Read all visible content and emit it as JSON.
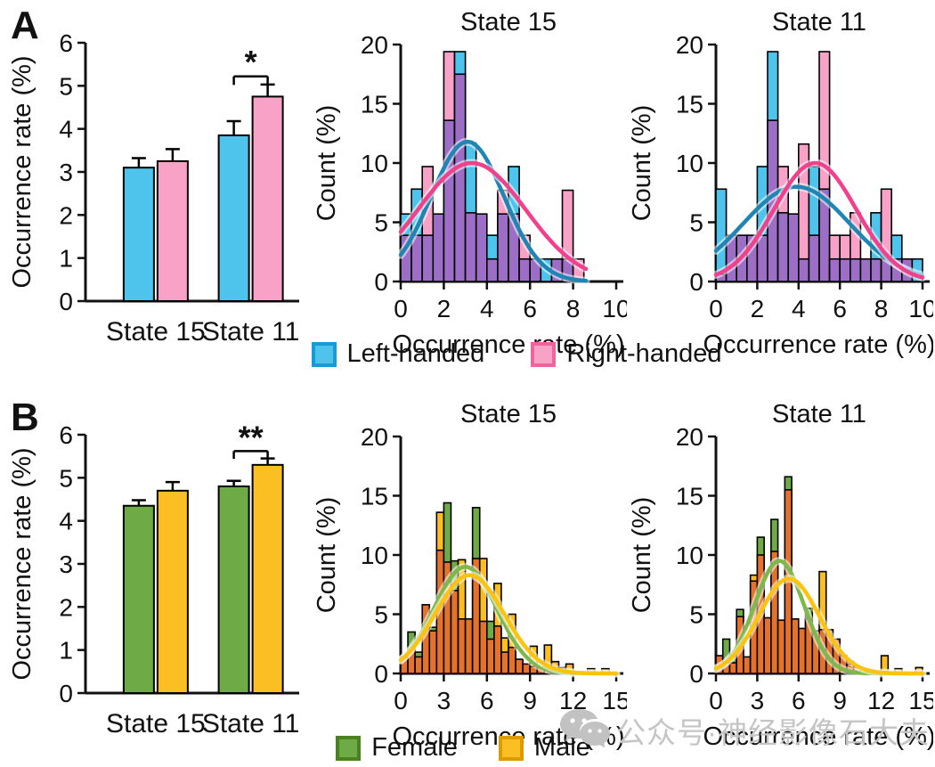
{
  "figure": {
    "panel_a_label": "A",
    "panel_b_label": "B",
    "watermark": {
      "text": "公众号·神经影像石大夫",
      "icon": "wechat-icon",
      "color": "#c5c5c5"
    }
  },
  "legends": {
    "a": {
      "items": [
        {
          "label": "Left-handed",
          "color": "#4EC4EC",
          "border": "#189BD7"
        },
        {
          "label": "Right-handed",
          "color": "#F9A2C8",
          "border": "#F0639F"
        }
      ]
    },
    "b": {
      "items": [
        {
          "label": "Female",
          "color": "#6EAB47",
          "border": "#49821F"
        },
        {
          "label": "Male",
          "color": "#FBBE23",
          "border": "#DA9C00"
        }
      ]
    }
  },
  "chart_data": [
    {
      "id": "a-bar",
      "panel": "A",
      "type": "bar",
      "ylabel": "Occurrence rate (%)",
      "ylim": [
        0,
        6
      ],
      "yticks": [
        0,
        1,
        2,
        3,
        4,
        5,
        6
      ],
      "categories": [
        "State 15",
        "State 11"
      ],
      "series": [
        {
          "name": "Left-handed",
          "color": "#4EC4EC",
          "values": [
            3.1,
            3.85
          ],
          "errors": [
            0.22,
            0.33
          ]
        },
        {
          "name": "Right-handed",
          "color": "#F9A2C8",
          "values": [
            3.25,
            4.75
          ],
          "errors": [
            0.28,
            0.28
          ]
        }
      ],
      "significance": {
        "category": "State 11",
        "label": "*",
        "bracket_y": 5.22,
        "tick_drop": 0.2,
        "label_y": 5.3
      }
    },
    {
      "id": "a-hist-15",
      "panel": "A",
      "type": "histogram",
      "title": "State 15",
      "xlabel": "Occurrence rate (%)",
      "ylabel": "Count (%)",
      "xlim": [
        0,
        10
      ],
      "ylim": [
        0,
        20
      ],
      "xticks": [
        0,
        2,
        4,
        6,
        8,
        10
      ],
      "yticks": [
        0,
        5,
        10,
        15,
        20
      ],
      "bin_width": 0.5,
      "overlap_color": "#9C6EC6",
      "series": [
        {
          "name": "Left-handed",
          "color": "#4EC4EC"
        },
        {
          "name": "Right-handed",
          "color": "#F9A2C8"
        }
      ],
      "bins": [
        [
          0,
          5.7,
          3.9
        ],
        [
          0.5,
          7.8,
          3.9
        ],
        [
          1,
          3.9,
          9.7
        ],
        [
          1.5,
          5.7,
          5.7
        ],
        [
          2,
          13.6,
          19.4
        ],
        [
          2.5,
          19.4,
          17.5
        ],
        [
          3,
          11.7,
          5.8
        ],
        [
          3.5,
          5.7,
          5.7
        ],
        [
          4,
          3.9,
          1.9
        ],
        [
          4.5,
          5.7,
          7.7
        ],
        [
          5,
          9.7,
          5.7
        ],
        [
          5.5,
          1.9,
          3.9
        ],
        [
          6,
          1.9,
          1.9
        ],
        [
          6.5,
          1.9,
          0
        ],
        [
          7,
          1.9,
          1.9
        ],
        [
          7.5,
          1.9,
          7.7
        ],
        [
          8,
          0,
          1.9
        ]
      ],
      "curves": [
        {
          "series": "Left-handed",
          "color": "#1F85B5",
          "peak": 11.8,
          "mean": 3.1,
          "sigma": 1.7,
          "xmax": 8.6
        },
        {
          "series": "Right-handed",
          "color": "#F2408C",
          "peak": 10.0,
          "mean": 3.3,
          "sigma": 2.5,
          "xmax": 8.6
        }
      ]
    },
    {
      "id": "a-hist-11",
      "panel": "A",
      "type": "histogram",
      "title": "State 11",
      "xlabel": "Occurrence rate (%)",
      "ylabel": "Count (%)",
      "xlim": [
        0,
        10
      ],
      "ylim": [
        0,
        20
      ],
      "xticks": [
        0,
        2,
        4,
        6,
        8,
        10
      ],
      "yticks": [
        0,
        5,
        10,
        15,
        20
      ],
      "bin_width": 0.5,
      "overlap_color": "#9C6EC6",
      "series": [
        {
          "name": "Left-handed",
          "color": "#4EC4EC"
        },
        {
          "name": "Right-handed",
          "color": "#F9A2C8"
        }
      ],
      "bins": [
        [
          0,
          7.8,
          0.6
        ],
        [
          0.5,
          3.9,
          3.9
        ],
        [
          1,
          3.9,
          3.9
        ],
        [
          1.5,
          3.9,
          3.9
        ],
        [
          2,
          9.7,
          3.9
        ],
        [
          2.5,
          19.4,
          13.6
        ],
        [
          3,
          5.8,
          9.7
        ],
        [
          3.5,
          5.7,
          5.7
        ],
        [
          4,
          1.9,
          11.6
        ],
        [
          4.5,
          9.7,
          3.9
        ],
        [
          5,
          7.8,
          19.4
        ],
        [
          5.5,
          1.9,
          3.9
        ],
        [
          6,
          1.9,
          3.9
        ],
        [
          6.5,
          1.9,
          5.8
        ],
        [
          7,
          1.9,
          1.9
        ],
        [
          7.5,
          5.8,
          1.9
        ],
        [
          8,
          1.9,
          7.8
        ],
        [
          8.5,
          3.9,
          1.9
        ],
        [
          9,
          1.9,
          1.9
        ],
        [
          9.5,
          1.9,
          0
        ]
      ],
      "curves": [
        {
          "series": "Left-handed",
          "color": "#1F85B5",
          "peak": 8.0,
          "mean": 3.9,
          "sigma": 2.6,
          "xmax": 10
        },
        {
          "series": "Right-handed",
          "color": "#F2408C",
          "peak": 10.0,
          "mean": 4.8,
          "sigma": 2.0,
          "xmax": 10
        }
      ]
    },
    {
      "id": "b-bar",
      "panel": "B",
      "type": "bar",
      "ylabel": "Occurrence rate (%)",
      "ylim": [
        0,
        6
      ],
      "yticks": [
        0,
        1,
        2,
        3,
        4,
        5,
        6
      ],
      "categories": [
        "State 15",
        "State 11"
      ],
      "series": [
        {
          "name": "Female",
          "color": "#6EAB47",
          "values": [
            4.35,
            4.8
          ],
          "errors": [
            0.13,
            0.13
          ]
        },
        {
          "name": "Male",
          "color": "#FBBE23",
          "values": [
            4.7,
            5.3
          ],
          "errors": [
            0.2,
            0.15
          ]
        }
      ],
      "significance": {
        "category": "State 11",
        "label": "**",
        "bracket_y": 5.62,
        "tick_drop": 0.18,
        "label_y": 5.68
      }
    },
    {
      "id": "b-hist-15",
      "panel": "B",
      "type": "histogram",
      "title": "State 15",
      "xlabel": "Occurrence rate (%)",
      "ylabel": "Count (%)",
      "xlim": [
        0,
        15
      ],
      "ylim": [
        0,
        20
      ],
      "xticks": [
        0,
        3,
        6,
        9,
        12,
        15
      ],
      "yticks": [
        0,
        5,
        10,
        15,
        20
      ],
      "bin_width": 0.5,
      "overlap_color": "#E4722C",
      "series": [
        {
          "name": "Female",
          "color": "#6EAB47"
        },
        {
          "name": "Male",
          "color": "#FBBE23"
        }
      ],
      "bins": [
        [
          0,
          1.3,
          1.3
        ],
        [
          0.5,
          3.5,
          2.0
        ],
        [
          1,
          1.8,
          1.4
        ],
        [
          1.5,
          5.8,
          5.8
        ],
        [
          2,
          3.9,
          3.6
        ],
        [
          2.5,
          10.4,
          13.6
        ],
        [
          3,
          14.4,
          9.4
        ],
        [
          3.5,
          9.5,
          7.0
        ],
        [
          4,
          4.6,
          9.6
        ],
        [
          4.5,
          4.6,
          4.6
        ],
        [
          5,
          14.0,
          9.7
        ],
        [
          5.5,
          4.4,
          9.7
        ],
        [
          6,
          4.4,
          2.9
        ],
        [
          6.5,
          4.0,
          7.6
        ],
        [
          7,
          1.8,
          3.0
        ],
        [
          7.5,
          2.2,
          5.0
        ],
        [
          8,
          1.2,
          1.2
        ],
        [
          8.5,
          0.8,
          0.8
        ],
        [
          9,
          0.6,
          2.3
        ],
        [
          9.5,
          0.5,
          0.5
        ],
        [
          10,
          0,
          2.4
        ],
        [
          10.5,
          0,
          1.0
        ],
        [
          11,
          0,
          0.5
        ],
        [
          11.5,
          0,
          0.8
        ],
        [
          13,
          0,
          0.4
        ],
        [
          14,
          0,
          0.4
        ]
      ],
      "curves": [
        {
          "series": "Female",
          "color": "#7FB84A",
          "peak": 9.0,
          "mean": 4.5,
          "sigma": 2.2,
          "xmax": 15
        },
        {
          "series": "Male",
          "color": "#FEC30F",
          "peak": 8.3,
          "mean": 4.8,
          "sigma": 2.4,
          "xmax": 15
        }
      ]
    },
    {
      "id": "b-hist-11",
      "panel": "B",
      "type": "histogram",
      "title": "State 11",
      "xlabel": "Occurrence rate (%)",
      "ylabel": "Count (%)",
      "xlim": [
        0,
        15
      ],
      "ylim": [
        0,
        20
      ],
      "xticks": [
        0,
        3,
        6,
        9,
        12,
        15
      ],
      "yticks": [
        0,
        5,
        10,
        15,
        20
      ],
      "bin_width": 0.5,
      "overlap_color": "#E4722C",
      "series": [
        {
          "name": "Female",
          "color": "#6EAB47"
        },
        {
          "name": "Male",
          "color": "#FBBE23"
        }
      ],
      "bins": [
        [
          0,
          1.5,
          1.5
        ],
        [
          0.5,
          2.9,
          1.0
        ],
        [
          1,
          1.4,
          0.9
        ],
        [
          1.5,
          5.4,
          4.8
        ],
        [
          2,
          1.4,
          1.4
        ],
        [
          2.5,
          7.8,
          8.3
        ],
        [
          3,
          11.5,
          10.0
        ],
        [
          3.5,
          4.7,
          4.7
        ],
        [
          4,
          13.0,
          10.3
        ],
        [
          4.5,
          4.5,
          4.5
        ],
        [
          5,
          16.6,
          15.5
        ],
        [
          5.5,
          4.6,
          4.6
        ],
        [
          6,
          3.8,
          3.8
        ],
        [
          6.5,
          5.5,
          4.6
        ],
        [
          7,
          3.6,
          3.6
        ],
        [
          7.5,
          3.7,
          8.6
        ],
        [
          8,
          3.7,
          3.7
        ],
        [
          8.5,
          2.9,
          2.9
        ],
        [
          9,
          1.5,
          1.5
        ],
        [
          9.5,
          0.8,
          1.0
        ],
        [
          10,
          0.6,
          0.6
        ],
        [
          12,
          0,
          1.5
        ],
        [
          13,
          0,
          0.4
        ],
        [
          14.5,
          0,
          0.5
        ]
      ],
      "curves": [
        {
          "series": "Female",
          "color": "#7FB84A",
          "peak": 9.5,
          "mean": 4.6,
          "sigma": 1.8,
          "xmax": 15
        },
        {
          "series": "Male",
          "color": "#FEC30F",
          "peak": 8.0,
          "mean": 5.3,
          "sigma": 2.2,
          "xmax": 15
        }
      ]
    }
  ]
}
